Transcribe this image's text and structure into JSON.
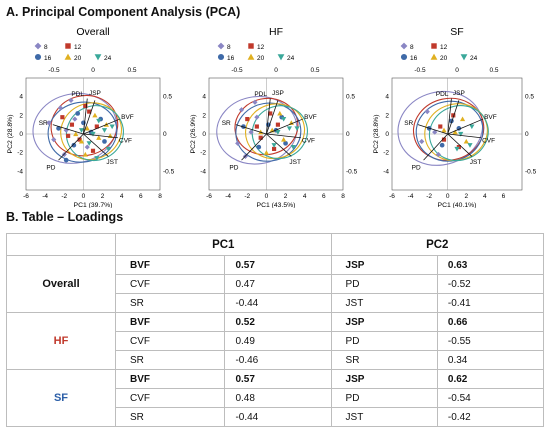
{
  "section_a_title": "A. Principal Component Analysis (PCA)",
  "section_b_title": "B. Table – Loadings",
  "legend": [
    {
      "label": "8",
      "shape": "diamond",
      "color": "#8a86c4"
    },
    {
      "label": "12",
      "shape": "square",
      "color": "#c0392b"
    },
    {
      "label": "16",
      "shape": "circle",
      "color": "#3f6aa8"
    },
    {
      "label": "20",
      "shape": "triangle-up",
      "color": "#e0b020"
    },
    {
      "label": "24",
      "shape": "triangle-down",
      "color": "#3aa89a"
    }
  ],
  "chart_data": [
    {
      "type": "scatter",
      "title": "Overall",
      "xlabel": "PC1 (39.7%)",
      "ylabel": "PC2 (28.8%)",
      "xlim": [
        -6,
        8
      ],
      "ylim": [
        -6,
        6
      ],
      "xticks": [
        "-6",
        "-4",
        "-2",
        "0",
        "2",
        "4",
        "6",
        "8"
      ],
      "yticks": [
        "-4",
        "-2",
        "0",
        "2",
        "4"
      ],
      "top_ticks": [
        "-0.5",
        "0",
        "0.5"
      ],
      "right_ticks": [
        "0.5",
        "0",
        "-0.5"
      ],
      "vector_labels": [
        "PDL",
        "JSP",
        "BVF",
        "SR",
        "CVF",
        "JST",
        "PD"
      ],
      "series": [
        {
          "name": "8",
          "points": [
            [
              -2.4,
              2.8
            ],
            [
              -1.8,
              0.4
            ],
            [
              -3.1,
              -0.6
            ],
            [
              -0.9,
              1.6
            ],
            [
              -2.0,
              -2.2
            ],
            [
              -1.3,
              3.6
            ],
            [
              -3.6,
              1.2
            ],
            [
              0.4,
              -1.4
            ]
          ]
        },
        {
          "name": "12",
          "points": [
            [
              -1.2,
              1.0
            ],
            [
              0.6,
              2.4
            ],
            [
              -0.4,
              -0.6
            ],
            [
              1.4,
              0.8
            ],
            [
              -2.2,
              1.8
            ],
            [
              0.2,
              3.0
            ],
            [
              1.0,
              -1.8
            ],
            [
              -1.6,
              -0.2
            ]
          ]
        },
        {
          "name": "16",
          "points": [
            [
              -1.0,
              -1.2
            ],
            [
              0.8,
              0.2
            ],
            [
              -2.6,
              0.6
            ],
            [
              1.8,
              1.6
            ],
            [
              0.0,
              1.2
            ],
            [
              -0.6,
              2.2
            ],
            [
              2.2,
              -0.8
            ],
            [
              -1.8,
              -2.8
            ]
          ]
        },
        {
          "name": "20",
          "points": [
            [
              0.4,
              0.6
            ],
            [
              1.6,
              -0.4
            ],
            [
              -0.8,
              0.0
            ],
            [
              2.4,
              1.0
            ],
            [
              0.2,
              -2.2
            ],
            [
              1.2,
              2.0
            ],
            [
              -0.2,
              -0.8
            ],
            [
              2.8,
              -0.2
            ]
          ]
        },
        {
          "name": "24",
          "points": [
            [
              1.0,
              0.0
            ],
            [
              2.2,
              0.4
            ],
            [
              0.6,
              -1.0
            ],
            [
              2.6,
              -1.6
            ],
            [
              1.6,
              1.4
            ],
            [
              -0.2,
              0.4
            ],
            [
              3.0,
              0.8
            ],
            [
              1.4,
              -2.6
            ]
          ]
        }
      ],
      "ellipses": [
        {
          "series": "8",
          "center": [
            -0.9,
            0.6
          ],
          "semi_axes": [
            4.4,
            3.7
          ],
          "angle_deg": 12
        },
        {
          "series": "12",
          "center": [
            0.1,
            0.9
          ],
          "semi_axes": [
            3.5,
            3.2
          ],
          "angle_deg": 15
        },
        {
          "series": "16",
          "center": [
            -0.1,
            0.2
          ],
          "semi_axes": [
            3.6,
            3.2
          ],
          "angle_deg": 10
        },
        {
          "series": "20",
          "center": [
            0.8,
            0.3
          ],
          "semi_axes": [
            3.2,
            3.0
          ],
          "angle_deg": 20
        },
        {
          "series": "24",
          "center": [
            1.2,
            0.1
          ],
          "semi_axes": [
            3.0,
            2.9
          ],
          "angle_deg": 25
        }
      ]
    },
    {
      "type": "scatter",
      "title": "HF",
      "xlabel": "PC1 (43.5%)",
      "ylabel": "PC2 (26.9%)",
      "xlim": [
        -6,
        8
      ],
      "ylim": [
        -6,
        6
      ],
      "xticks": [
        "-6",
        "-4",
        "-2",
        "0",
        "2",
        "4",
        "6",
        "8"
      ],
      "yticks": [
        "-4",
        "-2",
        "0",
        "2",
        "4"
      ],
      "top_ticks": [
        "-0.5",
        "0",
        "0.5"
      ],
      "right_ticks": [
        "0.5",
        "0",
        "-0.5"
      ],
      "vector_labels": [
        "PDL",
        "JSP",
        "BVF",
        "SR",
        "CVF",
        "JST",
        "PD"
      ],
      "series": [
        {
          "name": "8",
          "points": [
            [
              -2.6,
              2.6
            ],
            [
              -1.6,
              0.2
            ],
            [
              -3.0,
              -1.0
            ],
            [
              -1.0,
              1.8
            ],
            [
              -2.2,
              -2.4
            ],
            [
              -1.2,
              3.4
            ]
          ]
        },
        {
          "name": "12",
          "points": [
            [
              -1.0,
              0.8
            ],
            [
              0.4,
              2.2
            ],
            [
              -0.6,
              -0.4
            ],
            [
              1.2,
              1.0
            ],
            [
              -2.0,
              1.6
            ],
            [
              0.8,
              -1.6
            ]
          ]
        },
        {
          "name": "16",
          "points": [
            [
              -0.8,
              -1.4
            ],
            [
              1.0,
              0.4
            ],
            [
              -2.4,
              0.8
            ],
            [
              1.6,
              1.8
            ],
            [
              0.2,
              1.0
            ],
            [
              2.0,
              -1.0
            ]
          ]
        },
        {
          "name": "20",
          "points": [
            [
              0.6,
              0.4
            ],
            [
              1.8,
              -0.6
            ],
            [
              -0.6,
              0.2
            ],
            [
              2.6,
              1.2
            ],
            [
              0.0,
              -2.0
            ],
            [
              1.4,
              2.2
            ]
          ]
        },
        {
          "name": "24",
          "points": [
            [
              1.2,
              0.2
            ],
            [
              2.4,
              0.6
            ],
            [
              0.8,
              -1.2
            ],
            [
              2.8,
              -1.4
            ],
            [
              1.8,
              1.6
            ],
            [
              3.2,
              0.6
            ]
          ]
        }
      ],
      "ellipses": [
        {
          "series": "8",
          "center": [
            -1.0,
            0.4
          ],
          "semi_axes": [
            4.2,
            3.6
          ],
          "angle_deg": 8
        },
        {
          "series": "12",
          "center": [
            0.0,
            0.8
          ],
          "semi_axes": [
            3.3,
            3.0
          ],
          "angle_deg": 12
        },
        {
          "series": "16",
          "center": [
            0.2,
            0.2
          ],
          "semi_axes": [
            3.4,
            3.1
          ],
          "angle_deg": 10
        },
        {
          "series": "20",
          "center": [
            0.9,
            0.3
          ],
          "semi_axes": [
            3.1,
            2.9
          ],
          "angle_deg": 18
        },
        {
          "series": "24",
          "center": [
            1.4,
            0.2
          ],
          "semi_axes": [
            2.9,
            2.8
          ],
          "angle_deg": 22
        }
      ]
    },
    {
      "type": "scatter",
      "title": "SF",
      "xlabel": "PC1 (40.1%)",
      "ylabel": "PC2 (28.8%)",
      "xlim": [
        -6,
        8
      ],
      "ylim": [
        -6,
        6
      ],
      "xticks": [
        "-6",
        "-4",
        "-2",
        "0",
        "2",
        "4",
        "6"
      ],
      "yticks": [
        "-4",
        "-2",
        "0",
        "2",
        "4"
      ],
      "top_ticks": [
        "-0.5",
        "0",
        "0.5"
      ],
      "right_ticks": [
        "0.5",
        "0",
        "-0.5"
      ],
      "vector_labels": [
        "PDL",
        "JSP",
        "BVF",
        "SR",
        "CVF",
        "JST",
        "PD"
      ],
      "series": [
        {
          "name": "8",
          "points": [
            [
              -2.2,
              2.4
            ],
            [
              -1.4,
              0.2
            ],
            [
              -2.8,
              -0.8
            ],
            [
              -1.0,
              -2.2
            ]
          ]
        },
        {
          "name": "12",
          "points": [
            [
              -0.8,
              0.8
            ],
            [
              0.6,
              2.0
            ],
            [
              -0.4,
              -0.6
            ],
            [
              1.2,
              -1.4
            ]
          ]
        },
        {
          "name": "16",
          "points": [
            [
              -0.6,
              -1.2
            ],
            [
              1.2,
              0.6
            ],
            [
              -2.0,
              0.6
            ],
            [
              0.4,
              1.4
            ]
          ]
        },
        {
          "name": "20",
          "points": [
            [
              0.8,
              0.2
            ],
            [
              2.0,
              -0.8
            ],
            [
              -0.4,
              0.4
            ],
            [
              1.6,
              1.6
            ]
          ]
        },
        {
          "name": "24",
          "points": [
            [
              1.4,
              0.0
            ],
            [
              2.6,
              0.8
            ],
            [
              1.0,
              -1.6
            ],
            [
              2.4,
              -1.2
            ]
          ]
        }
      ],
      "ellipses": [
        {
          "series": "8",
          "center": [
            -0.8,
            0.6
          ],
          "semi_axes": [
            4.6,
            3.9
          ],
          "angle_deg": 15
        },
        {
          "series": "12",
          "center": [
            0.1,
            0.5
          ],
          "semi_axes": [
            3.8,
            3.3
          ],
          "angle_deg": 12
        },
        {
          "series": "16",
          "center": [
            0.2,
            0.3
          ],
          "semi_axes": [
            3.6,
            3.2
          ],
          "angle_deg": 10
        },
        {
          "series": "20",
          "center": [
            0.9,
            0.2
          ],
          "semi_axes": [
            3.4,
            3.0
          ],
          "angle_deg": 18
        },
        {
          "series": "24",
          "center": [
            1.2,
            0.1
          ],
          "semi_axes": [
            3.2,
            2.9
          ],
          "angle_deg": 22
        }
      ]
    }
  ],
  "table": {
    "headers": [
      "PC1",
      "PC2"
    ],
    "rows": [
      {
        "group": "Overall",
        "group_color": "#111111",
        "v1": "BVF",
        "p1": "0.57",
        "v2": "JSP",
        "p2": "0.63",
        "highlight": true
      },
      {
        "group": "",
        "v1": "CVF",
        "p1": "0.47",
        "v2": "PD",
        "p2": "-0.52",
        "highlight": false
      },
      {
        "group": "",
        "v1": "SR",
        "p1": "-0.44",
        "v2": "JST",
        "p2": "-0.41",
        "highlight": false
      },
      {
        "group": "HF",
        "group_color": "#c0392b",
        "v1": "BVF",
        "p1": "0.52",
        "v2": "JSP",
        "p2": "0.66",
        "highlight": true
      },
      {
        "group": "",
        "v1": "CVF",
        "p1": "0.49",
        "v2": "PD",
        "p2": "-0.55",
        "highlight": false
      },
      {
        "group": "",
        "v1": "SR",
        "p1": "-0.46",
        "v2": "SR",
        "p2": "0.34",
        "highlight": false
      },
      {
        "group": "SF",
        "group_color": "#2c5fa8",
        "v1": "BVF",
        "p1": "0.57",
        "v2": "JSP",
        "p2": "0.62",
        "highlight": true
      },
      {
        "group": "",
        "v1": "CVF",
        "p1": "0.48",
        "v2": "PD",
        "p2": "-0.54",
        "highlight": false
      },
      {
        "group": "",
        "v1": "SR",
        "p1": "-0.44",
        "v2": "JST",
        "p2": "-0.42",
        "highlight": false
      }
    ]
  }
}
